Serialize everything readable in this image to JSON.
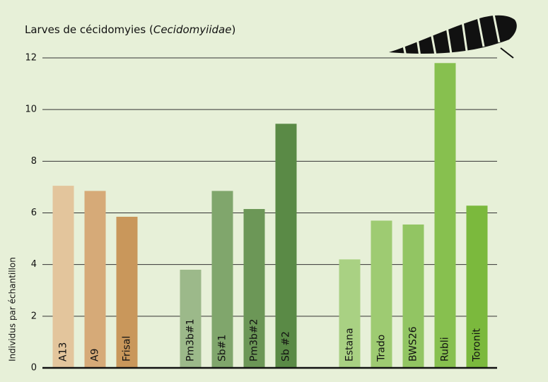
{
  "chart_data": {
    "type": "bar",
    "title": [
      "Larves de cécidomyies (",
      "Cecidomyiidae",
      ")"
    ],
    "y_label": "Individus par échantillon",
    "categories": [
      "A13",
      "A9",
      "Frisal",
      "Pm3b#1",
      "Sb#1",
      "Pm3b#2",
      "Sb #2",
      "Estana",
      "Trado",
      "BWS26",
      "Rubli",
      "Toronit"
    ],
    "values": [
      7.05,
      6.85,
      5.85,
      3.8,
      6.85,
      6.15,
      9.45,
      4.2,
      5.7,
      5.55,
      11.8,
      6.28
    ],
    "colors": [
      "#e3c59c",
      "#d6aa78",
      "#c9975b",
      "#9cb98a",
      "#80a66c",
      "#6c9757",
      "#5a8a46",
      "#a9d183",
      "#9ecb72",
      "#92c563",
      "#87c04f",
      "#7bb93d"
    ],
    "ylim": [
      0,
      12
    ],
    "yticks": [
      0,
      2,
      4,
      6,
      8,
      10,
      12
    ],
    "grid": true
  }
}
